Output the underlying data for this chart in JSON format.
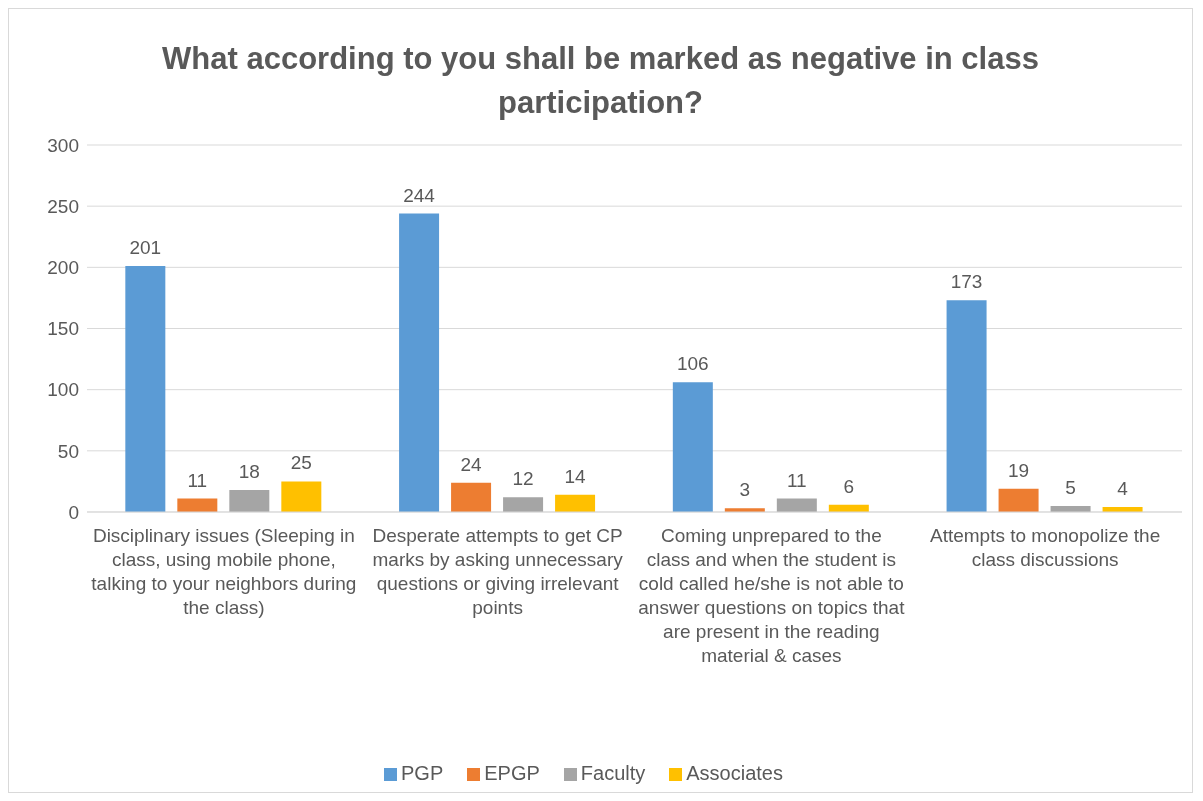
{
  "chart_data": {
    "type": "bar",
    "title": "What according to you shall be marked as negative in class participation?",
    "categories": [
      "Disciplinary issues (Sleeping in class, using mobile phone, talking to your neighbors during the class)",
      "Desperate attempts to get CP marks by asking unnecessary questions or giving irrelevant points",
      "Coming unprepared to the class and when the student is cold called he/she is not able to answer questions on topics that are present in the reading material & cases",
      "Attempts to monopolize the class discussions"
    ],
    "series": [
      {
        "name": "PGP",
        "color": "#5b9bd5",
        "values": [
          201,
          244,
          106,
          173
        ]
      },
      {
        "name": "EPGP",
        "color": "#ed7d31",
        "values": [
          11,
          24,
          3,
          19
        ]
      },
      {
        "name": "Faculty",
        "color": "#a5a5a5",
        "values": [
          18,
          12,
          11,
          5
        ]
      },
      {
        "name": "Associates",
        "color": "#ffc000",
        "values": [
          25,
          14,
          6,
          4
        ]
      }
    ],
    "ylim": [
      0,
      300
    ],
    "yticks": [
      0,
      50,
      100,
      150,
      200,
      250,
      300
    ],
    "grid": "y",
    "legend": "bottom",
    "data_labels": true
  }
}
